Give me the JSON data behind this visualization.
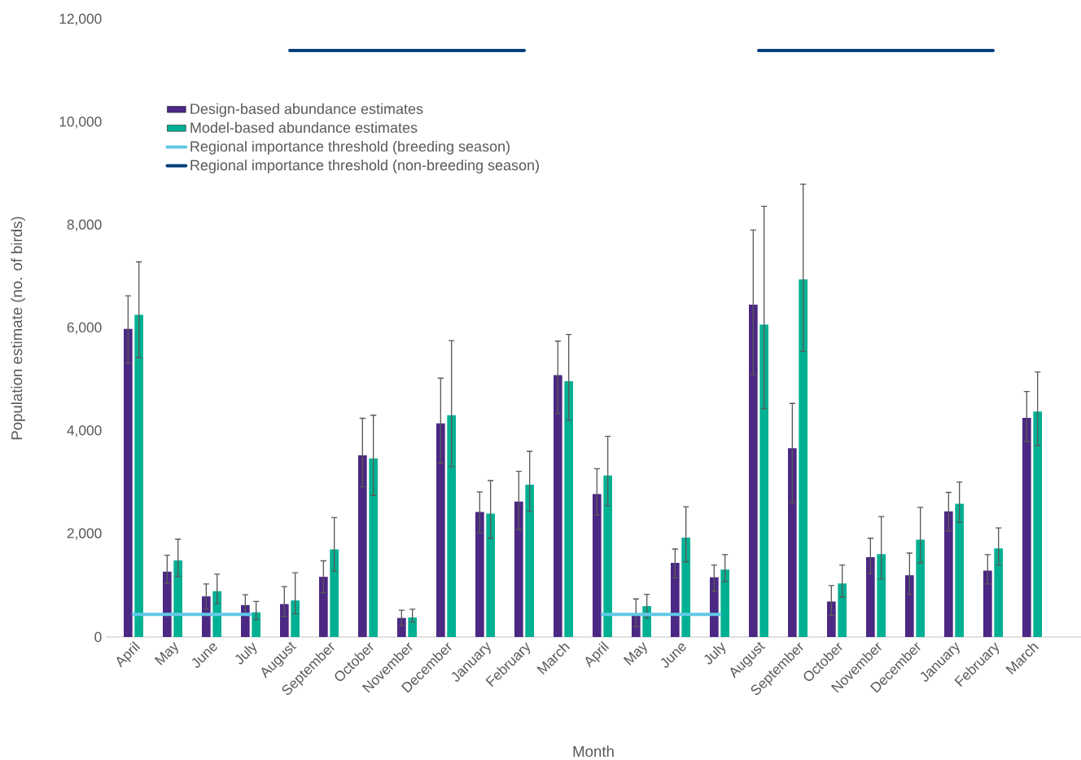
{
  "chart_data": {
    "type": "bar",
    "xlabel": "Month",
    "ylabel": "Population estimate (no. of birds)",
    "categories": [
      "April",
      "May",
      "June",
      "July",
      "August",
      "September",
      "October",
      "November",
      "December",
      "January",
      "February",
      "March",
      "April",
      "May",
      "June",
      "July",
      "August",
      "September",
      "October",
      "November",
      "December",
      "January",
      "February",
      "March"
    ],
    "series": [
      {
        "name": "Design-based abundance estimates",
        "color": "#4b2883",
        "values": [
          5990,
          1270,
          790,
          620,
          640,
          1170,
          3530,
          370,
          4150,
          2430,
          2630,
          5090,
          2780,
          430,
          1440,
          1160,
          6460,
          3670,
          690,
          1550,
          1200,
          2440,
          1290,
          4260
        ],
        "errors": [
          [
            5320,
            6630
          ],
          [
            1045,
            1590
          ],
          [
            540,
            1030
          ],
          [
            420,
            820
          ],
          [
            400,
            980
          ],
          [
            860,
            1480
          ],
          [
            2920,
            4250
          ],
          [
            220,
            520
          ],
          [
            3380,
            5030
          ],
          [
            2030,
            2820
          ],
          [
            2090,
            3220
          ],
          [
            4340,
            5750
          ],
          [
            2370,
            3270
          ],
          [
            200,
            740
          ],
          [
            1150,
            1710
          ],
          [
            890,
            1400
          ],
          [
            5100,
            7910
          ],
          [
            2610,
            4540
          ],
          [
            420,
            1000
          ],
          [
            1230,
            1920
          ],
          [
            830,
            1630
          ],
          [
            2060,
            2810
          ],
          [
            1030,
            1600
          ],
          [
            3800,
            4770
          ]
        ]
      },
      {
        "name": "Model-based abundance estimates",
        "color": "#00b092",
        "values": [
          6260,
          1490,
          890,
          480,
          710,
          1700,
          3470,
          380,
          4310,
          2400,
          2960,
          4970,
          3140,
          600,
          1930,
          1310,
          6070,
          6950,
          1040,
          1610,
          1890,
          2590,
          1720,
          4380
        ],
        "errors": [
          [
            5430,
            7290
          ],
          [
            1180,
            1900
          ],
          [
            650,
            1220
          ],
          [
            340,
            690
          ],
          [
            450,
            1250
          ],
          [
            1280,
            2320
          ],
          [
            2750,
            4310
          ],
          [
            290,
            540
          ],
          [
            3310,
            5760
          ],
          [
            1920,
            3040
          ],
          [
            2440,
            3610
          ],
          [
            4210,
            5880
          ],
          [
            2550,
            3900
          ],
          [
            370,
            830
          ],
          [
            1460,
            2530
          ],
          [
            1080,
            1600
          ],
          [
            4440,
            8370
          ],
          [
            5550,
            8800
          ],
          [
            780,
            1400
          ],
          [
            1130,
            2340
          ],
          [
            1440,
            2520
          ],
          [
            2230,
            3010
          ],
          [
            1400,
            2120
          ],
          [
            3720,
            5150
          ]
        ]
      },
      {
        "name": "Regional importance threshold (breeding season)",
        "type": "line",
        "color": "#62c8e8",
        "values": [
          440,
          440,
          440,
          440,
          null,
          null,
          null,
          null,
          null,
          null,
          null,
          null,
          440,
          440,
          440,
          440,
          null,
          null,
          null,
          null,
          null,
          null,
          null,
          null
        ]
      },
      {
        "name": "Regional importance threshold (non-breeding season)",
        "type": "line",
        "color": "#003f7a",
        "values": [
          null,
          null,
          null,
          null,
          11400,
          11400,
          11400,
          11400,
          11400,
          11400,
          11400,
          null,
          null,
          null,
          null,
          null,
          11400,
          11400,
          11400,
          11400,
          11400,
          11400,
          11400,
          null
        ]
      }
    ],
    "ylim": [
      0,
      12000
    ],
    "yticks": [
      0,
      {
        "value": 2000,
        "label": "2,000"
      },
      {
        "value": 4000,
        "label": "4,000"
      },
      {
        "value": 6000,
        "label": "6,000"
      },
      {
        "value": 8000,
        "label": "8,000"
      },
      {
        "value": 10000,
        "label": "10,000"
      },
      {
        "value": 12000,
        "label": "12,000"
      }
    ],
    "legend": "top left",
    "grid": false
  }
}
